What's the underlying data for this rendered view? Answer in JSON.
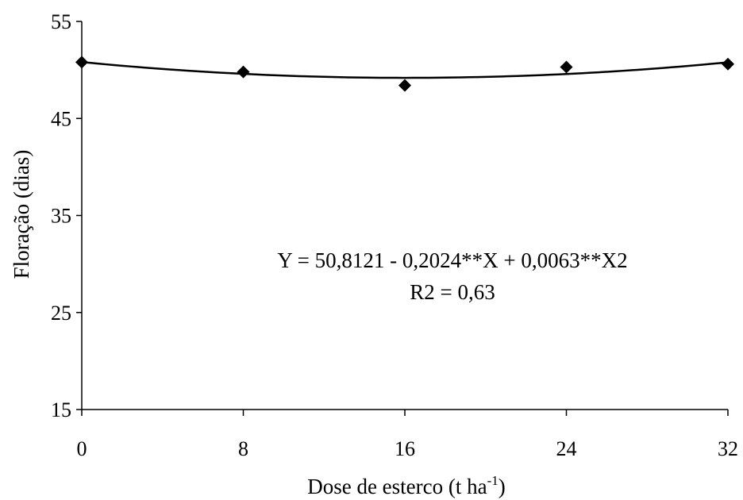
{
  "chart_data": {
    "type": "scatter",
    "title": "",
    "xlabel": "Dose de esterco (t ha",
    "xlabel_sup": "-1",
    "xlabel_close": ")",
    "ylabel": "Floração (dias)",
    "xlim": [
      0,
      32
    ],
    "ylim": [
      15,
      55
    ],
    "x_ticks": [
      0,
      8,
      16,
      24,
      32
    ],
    "y_ticks": [
      15,
      25,
      35,
      45,
      55
    ],
    "grid": false,
    "legend": "none",
    "marker": "diamond",
    "color": "#000000",
    "series": [
      {
        "x": [
          0,
          8,
          16,
          24,
          32
        ],
        "y": [
          50.8,
          49.8,
          48.4,
          50.3,
          50.6
        ]
      }
    ],
    "fit": {
      "type": "quadratic",
      "coefficients": [
        50.8121,
        -0.2024,
        0.0063
      ],
      "equation": "Y = 50,8121 - 0,2024**X + 0,0063**X2",
      "r2_label": "R2 = 0,63"
    }
  }
}
